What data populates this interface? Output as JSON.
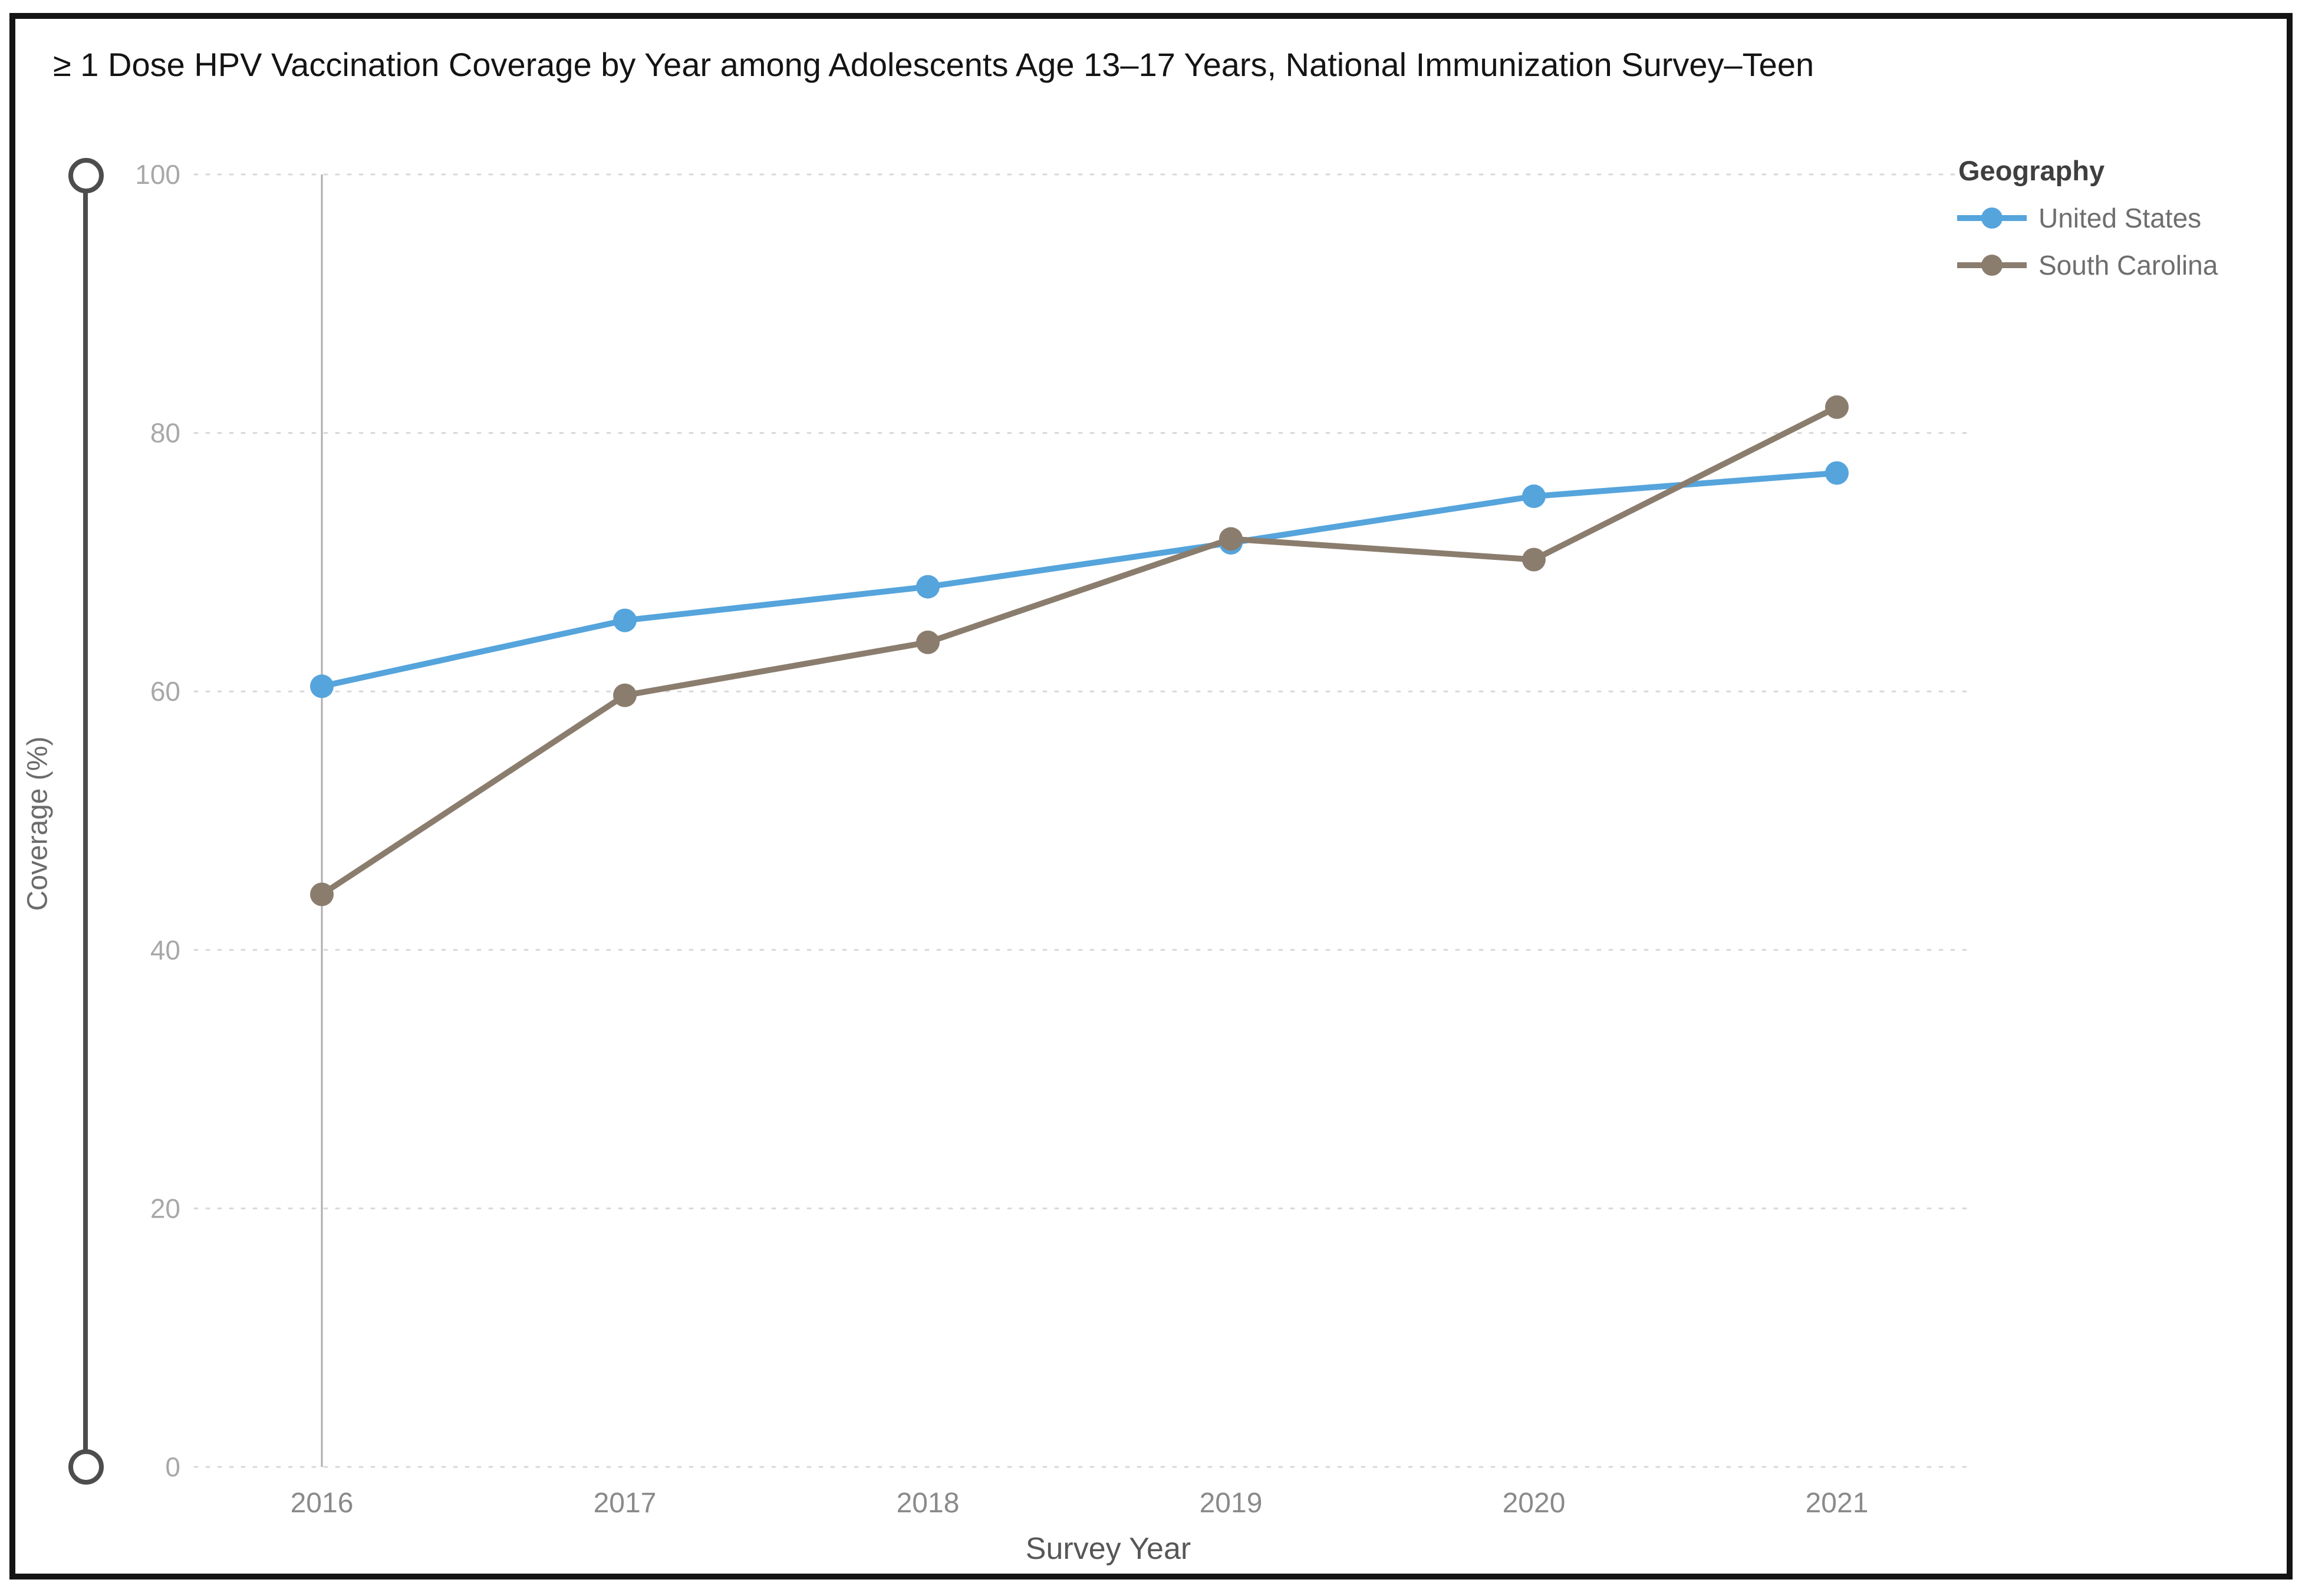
{
  "chart_data": {
    "type": "line",
    "title": "≥ 1 Dose HPV Vaccination Coverage by Year among Adolescents Age 13–17 Years, National Immunization Survey–Teen",
    "xlabel": "Survey Year",
    "ylabel": "Coverage (%)",
    "x": [
      "2016",
      "2017",
      "2018",
      "2019",
      "2020",
      "2021"
    ],
    "ylim": [
      0,
      100
    ],
    "yticks": [
      0,
      20,
      40,
      60,
      80,
      100
    ],
    "grid": "horizontal-dotted",
    "legend": {
      "title": "Geography",
      "position": "top-right"
    },
    "series": [
      {
        "name": "United States",
        "color": "#55A4DC",
        "values": [
          60.4,
          65.5,
          68.1,
          71.5,
          75.1,
          76.9
        ]
      },
      {
        "name": "South Carolina",
        "color": "#8B7D6E",
        "values": [
          44.3,
          59.7,
          63.8,
          71.8,
          70.2,
          82.0
        ]
      }
    ]
  }
}
